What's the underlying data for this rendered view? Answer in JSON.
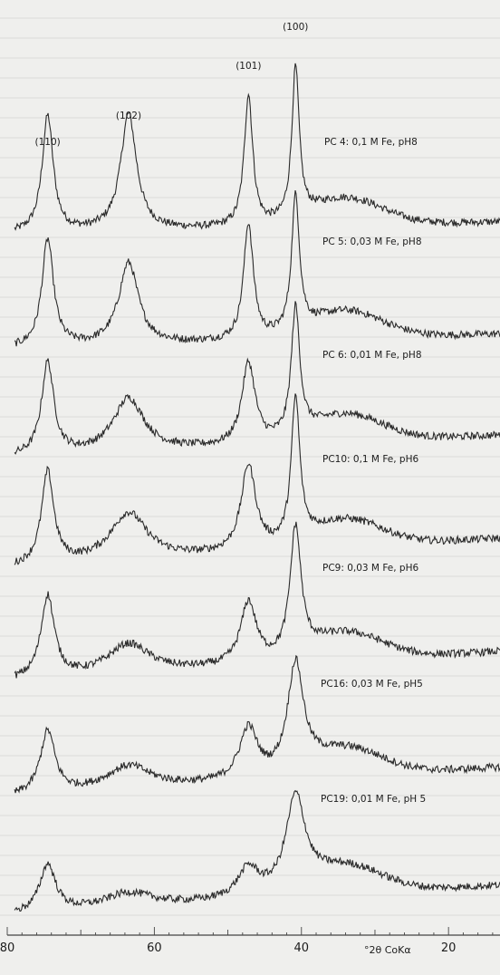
{
  "chart_data": {
    "type": "line",
    "xlabel": "°2θ CoKα",
    "xlim": [
      80,
      13
    ],
    "x_ticks": [
      80,
      60,
      40,
      20
    ],
    "x_tick_labels": [
      "80",
      "60",
      "40",
      "20"
    ],
    "peak_labels": [
      {
        "label": "(110)",
        "x": 74.5
      },
      {
        "label": "(102)",
        "x": 63.5
      },
      {
        "label": "(101)",
        "x": 47.2
      },
      {
        "label": "(100)",
        "x": 40.8
      }
    ],
    "series": [
      {
        "name": "PC 4: 0,1 M Fe, pH8",
        "peaks": {
          "p110": [
            74.5,
            0.78,
            0.9
          ],
          "p102": [
            63.5,
            0.78,
            1.3
          ],
          "p101": [
            47.2,
            0.88,
            0.7
          ],
          "p100": [
            40.8,
            1.0,
            0.6
          ]
        },
        "base_left": 0.0,
        "base_right": 0.08
      },
      {
        "name": "PC 5: 0,03 M Fe, pH8",
        "peaks": {
          "p110": [
            74.5,
            0.72,
            0.95
          ],
          "p102": [
            63.5,
            0.55,
            1.6
          ],
          "p101": [
            47.2,
            0.78,
            0.8
          ],
          "p100": [
            40.8,
            0.9,
            0.65
          ]
        },
        "base_left": 0.0,
        "base_right": 0.1
      },
      {
        "name": "PC 6: 0,01 M Fe, pH8",
        "peaks": {
          "p110": [
            74.5,
            0.62,
            1.0
          ],
          "p102": [
            63.5,
            0.36,
            2.5
          ],
          "p101": [
            47.2,
            0.55,
            1.1
          ],
          "p100": [
            40.8,
            0.85,
            0.7
          ]
        },
        "base_left": 0.0,
        "base_right": 0.15
      },
      {
        "name": "PC10: 0,1 M Fe, pH6",
        "peaks": {
          "p110": [
            74.5,
            0.62,
            1.0
          ],
          "p102": [
            63.5,
            0.32,
            3.0
          ],
          "p101": [
            47.2,
            0.58,
            1.2
          ],
          "p100": [
            40.8,
            0.95,
            0.7
          ]
        },
        "base_left": 0.0,
        "base_right": 0.2
      },
      {
        "name": "PC9: 0,03 M Fe, pH6",
        "peaks": {
          "p110": [
            74.5,
            0.55,
            1.1
          ],
          "p102": [
            63.5,
            0.2,
            3.5
          ],
          "p101": [
            47.2,
            0.42,
            1.3
          ],
          "p100": [
            40.8,
            0.85,
            0.9
          ]
        },
        "base_left": 0.0,
        "base_right": 0.2
      },
      {
        "name": "PC16: 0,03 M Fe, pH5",
        "peaks": {
          "p110": [
            74.5,
            0.42,
            1.2
          ],
          "p102": [
            63.5,
            0.16,
            3.8
          ],
          "p101": [
            47.2,
            0.35,
            1.5
          ],
          "p100": [
            40.8,
            0.72,
            1.3
          ]
        },
        "base_left": 0.0,
        "base_right": 0.2
      },
      {
        "name": "PC19: 0,01 M Fe, pH 5",
        "peaks": {
          "p110": [
            74.5,
            0.32,
            1.3
          ],
          "p102": [
            63.5,
            0.1,
            4.0
          ],
          "p101": [
            47.2,
            0.2,
            1.8
          ],
          "p100": [
            40.8,
            0.62,
            1.6
          ]
        },
        "base_left": 0.0,
        "base_right": 0.2
      }
    ],
    "colors": {
      "paper": "#efefed",
      "trace": "#2a2a2a",
      "grid": "#c8c8c6",
      "axis": "#444444"
    }
  }
}
